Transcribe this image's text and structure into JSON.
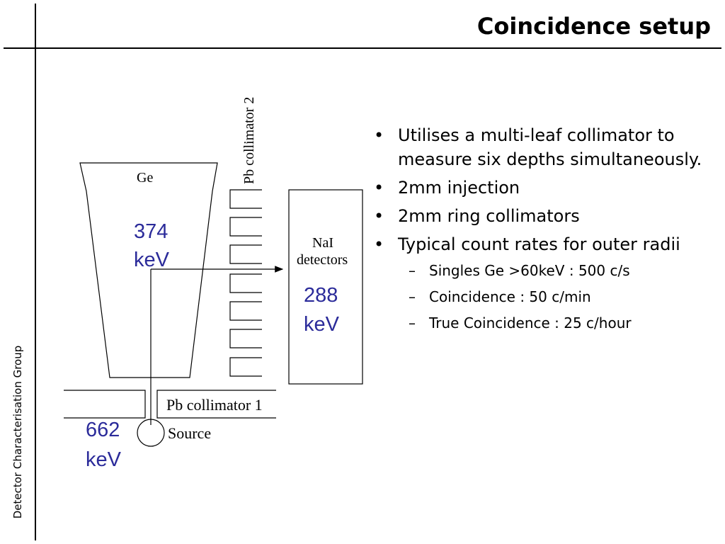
{
  "slide": {
    "title": "Coincidence setup",
    "sidebar_label": "Detector Characterisation Group"
  },
  "diagram": {
    "ge_label": "Ge",
    "pb_collimator_2_label": "Pb collimator 2",
    "nai_label_line1": "NaI",
    "nai_label_line2": "detectors",
    "pb_collimator_1_label": "Pb collimator 1",
    "source_label": "Source",
    "energy_ge_value": "374",
    "energy_ge_unit": "keV",
    "energy_nai_value": "288",
    "energy_nai_unit": "keV",
    "energy_source_value": "662",
    "energy_source_unit": "keV",
    "energy_color": "#2b2b9a"
  },
  "bullets": [
    {
      "level": 1,
      "text": "Utilises a multi-leaf collimator to measure six depths simultaneously."
    },
    {
      "level": 1,
      "text": "2mm injection"
    },
    {
      "level": 1,
      "text": "2mm ring collimators"
    },
    {
      "level": 1,
      "text": "Typical count rates for outer radii"
    },
    {
      "level": 2,
      "text": "Singles Ge >60keV : 500 c/s"
    },
    {
      "level": 2,
      "text": "Coincidence : 50 c/min"
    },
    {
      "level": 2,
      "text": "True Coincidence : 25 c/hour"
    }
  ]
}
